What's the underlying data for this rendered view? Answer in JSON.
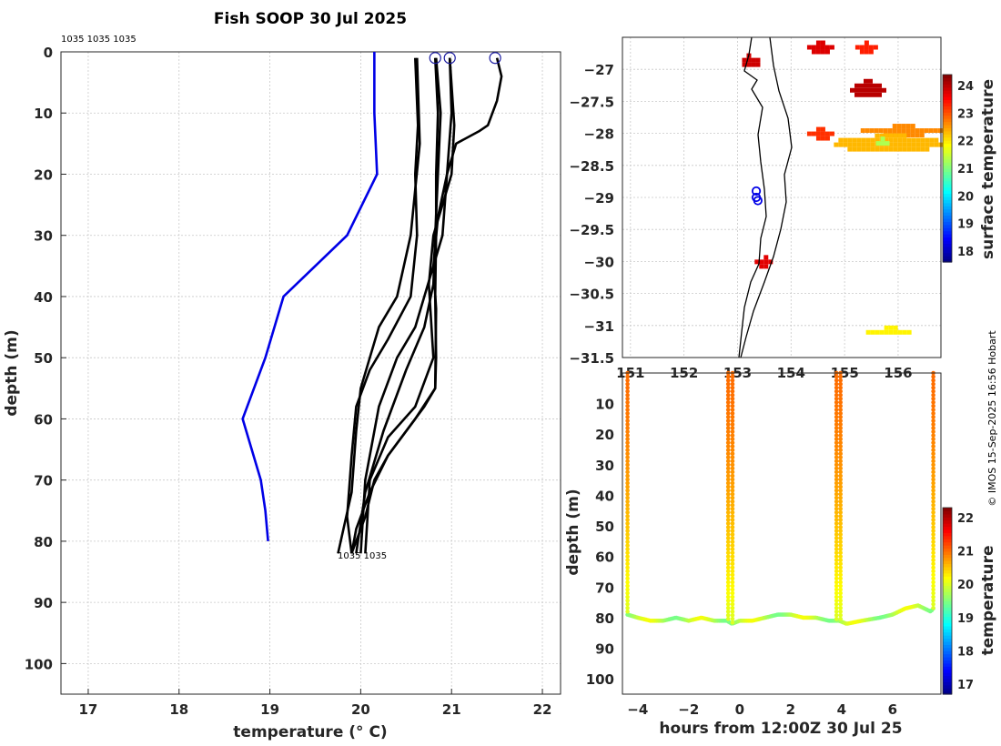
{
  "title": "Fish SOOP 30 Jul 2025",
  "id_labels": {
    "top": "1035 1035 1035",
    "bottom": "1035 1035"
  },
  "copyright": "© IMOS 15-Sep-2025 16:56 Hobart",
  "colors": {
    "reference_profile": "#0000e6",
    "profiles": "#000000",
    "track": "#0000e6",
    "axes": "#262626"
  },
  "chart_data": [
    {
      "type": "line",
      "name": "temperature-depth-profiles",
      "xlabel": "temperature (° C)",
      "ylabel": "depth (m)",
      "xlim": [
        16.7,
        22.2
      ],
      "ylim": [
        105,
        0
      ],
      "xticks": [
        17,
        18,
        19,
        20,
        21,
        22
      ],
      "yticks": [
        0,
        10,
        20,
        30,
        40,
        50,
        60,
        70,
        80,
        90,
        100
      ],
      "grid": true,
      "reference_profile": {
        "t": [
          20.15,
          20.15,
          20.18,
          19.85,
          19.15,
          18.95,
          18.7,
          18.9,
          18.95,
          18.98
        ],
        "d": [
          0,
          10,
          20,
          30,
          40,
          50,
          60,
          70,
          75,
          80
        ]
      },
      "profiles": [
        {
          "t": [
            20.6,
            20.63,
            20.6,
            20.62,
            20.55,
            20.3,
            20.1,
            19.95,
            19.9,
            19.85,
            19.9
          ],
          "d": [
            1,
            12,
            20,
            30,
            40,
            47,
            52,
            58,
            66,
            76,
            82
          ]
        },
        {
          "t": [
            20.62,
            20.65,
            20.55,
            20.4,
            20.2,
            20.1,
            20.0,
            19.95,
            19.9,
            19.75
          ],
          "d": [
            1,
            15,
            30,
            40,
            45,
            50,
            55,
            62,
            72,
            82
          ]
        },
        {
          "t": [
            20.82,
            20.85,
            20.83,
            20.83,
            20.82,
            20.83,
            20.82,
            20.6,
            20.3,
            20.1,
            19.95,
            19.9
          ],
          "d": [
            1,
            10,
            20,
            30,
            40,
            50,
            55,
            60,
            66,
            72,
            78,
            82
          ]
        },
        {
          "t": [
            20.83,
            20.88,
            20.85,
            20.82,
            20.8,
            20.7,
            20.5,
            20.25,
            20.05,
            19.95
          ],
          "d": [
            1,
            10,
            20,
            30,
            38,
            45,
            52,
            62,
            72,
            82
          ]
        },
        {
          "t": [
            20.98,
            21.0,
            20.95,
            20.9,
            20.8,
            20.7,
            20.6,
            20.4,
            20.2,
            20.05,
            20.0
          ],
          "d": [
            1,
            10,
            20,
            30,
            35,
            40,
            45,
            50,
            58,
            70,
            82
          ]
        },
        {
          "t": [
            20.98,
            21.03,
            21.0,
            20.9,
            20.8,
            20.75,
            20.8,
            20.6,
            20.3,
            20.1,
            20.05
          ],
          "d": [
            1,
            12,
            20,
            25,
            30,
            38,
            50,
            58,
            63,
            70,
            82
          ]
        },
        {
          "t": [
            21.5,
            21.55,
            21.5,
            21.4,
            21.3,
            21.05,
            20.95,
            20.85,
            20.8,
            20.83,
            20.82,
            20.7,
            20.5,
            20.3,
            20.15,
            20.05,
            19.9
          ],
          "d": [
            1,
            4,
            8,
            12,
            13,
            15,
            20,
            27,
            35,
            42,
            55,
            58,
            62,
            66,
            70,
            76,
            82
          ]
        }
      ],
      "surface_markers_t": [
        20.82,
        20.98,
        21.48
      ]
    },
    {
      "type": "heatmap",
      "name": "surface-temperature-map",
      "xlim": [
        150.85,
        156.8
      ],
      "ylim": [
        -31.5,
        -26.5
      ],
      "xticks": [
        151,
        152,
        153,
        154,
        155,
        156
      ],
      "yticks": [
        -27,
        -27.5,
        -28,
        -28.5,
        -29,
        -29.5,
        -30,
        -30.5,
        -31,
        -31.5
      ],
      "colorbar": {
        "label": "surface temperature",
        "min": 17.6,
        "max": 24.4,
        "ticks": [
          18,
          19,
          20,
          21,
          22,
          23,
          24
        ]
      },
      "track_lon": [
        153.35,
        153.35,
        153.38
      ],
      "track_lat": [
        -28.9,
        -29.0,
        -29.05
      ],
      "patches": [
        {
          "lon": [
            153.0,
            153.35
          ],
          "lat": [
            -26.75,
            -26.95
          ],
          "t": 24.0
        },
        {
          "lon": [
            154.3,
            154.75
          ],
          "lat": [
            -26.55,
            -26.72
          ],
          "t": 23.8
        },
        {
          "lon": [
            155.2,
            155.55
          ],
          "lat": [
            -26.55,
            -26.72
          ],
          "t": 23.7
        },
        {
          "lon": [
            155.1,
            155.7
          ],
          "lat": [
            -27.15,
            -27.4
          ],
          "t": 23.6
        },
        {
          "lon": [
            154.3,
            154.75
          ],
          "lat": [
            -27.9,
            -28.05
          ],
          "t": 23.2
        },
        {
          "lon": [
            155.3,
            156.8
          ],
          "lat": [
            -27.85,
            -28.0
          ],
          "t": 22.6
        },
        {
          "lon": [
            154.8,
            156.8
          ],
          "lat": [
            -28.0,
            -28.25
          ],
          "t": 22.0
        },
        {
          "lon": [
            155.5,
            155.8
          ],
          "lat": [
            -28.05,
            -28.15
          ],
          "t": 21.0
        },
        {
          "lon": [
            155.4,
            156.2
          ],
          "lat": [
            -31.0,
            -31.12
          ],
          "t": 22.1
        },
        {
          "lon": [
            153.32,
            153.6
          ],
          "lat": [
            -29.9,
            -30.05
          ],
          "t": 23.5
        }
      ]
    },
    {
      "type": "scatter",
      "name": "depth-time-section",
      "xlabel": "hours from 12:00Z 30 Jul 25",
      "ylabel": "depth (m)",
      "xlim": [
        -4.6,
        7.9
      ],
      "ylim": [
        105,
        0
      ],
      "xticks": [
        -4,
        -2,
        0,
        2,
        4,
        6
      ],
      "yticks": [
        10,
        20,
        30,
        40,
        50,
        60,
        70,
        80,
        90,
        100
      ],
      "colorbar": {
        "label": "temperature",
        "min": 16.7,
        "max": 22.3,
        "ticks": [
          17,
          18,
          19,
          20,
          21,
          22
        ]
      },
      "casts_hours": [
        -4.4,
        -0.45,
        -0.28,
        3.8,
        3.96,
        7.6
      ],
      "bottom_track": {
        "h": [
          -4.4,
          -4.0,
          -3.5,
          -3.0,
          -2.5,
          -2.0,
          -1.5,
          -1.0,
          -0.5,
          -0.3,
          0.0,
          0.5,
          1.0,
          1.5,
          2.0,
          2.5,
          3.0,
          3.5,
          3.9,
          4.2,
          4.8,
          5.5,
          6.0,
          6.5,
          7.0,
          7.5,
          7.6
        ],
        "d": [
          79,
          80,
          81,
          81,
          80,
          81,
          80,
          81,
          81,
          82,
          81,
          81,
          80,
          79,
          79,
          80,
          80,
          81,
          81,
          82,
          81,
          80,
          79,
          77,
          76,
          78,
          77
        ]
      },
      "cast_surface_t": 21.0,
      "cast_bottom_t": 20.0,
      "bottom_t": 19.8
    }
  ]
}
